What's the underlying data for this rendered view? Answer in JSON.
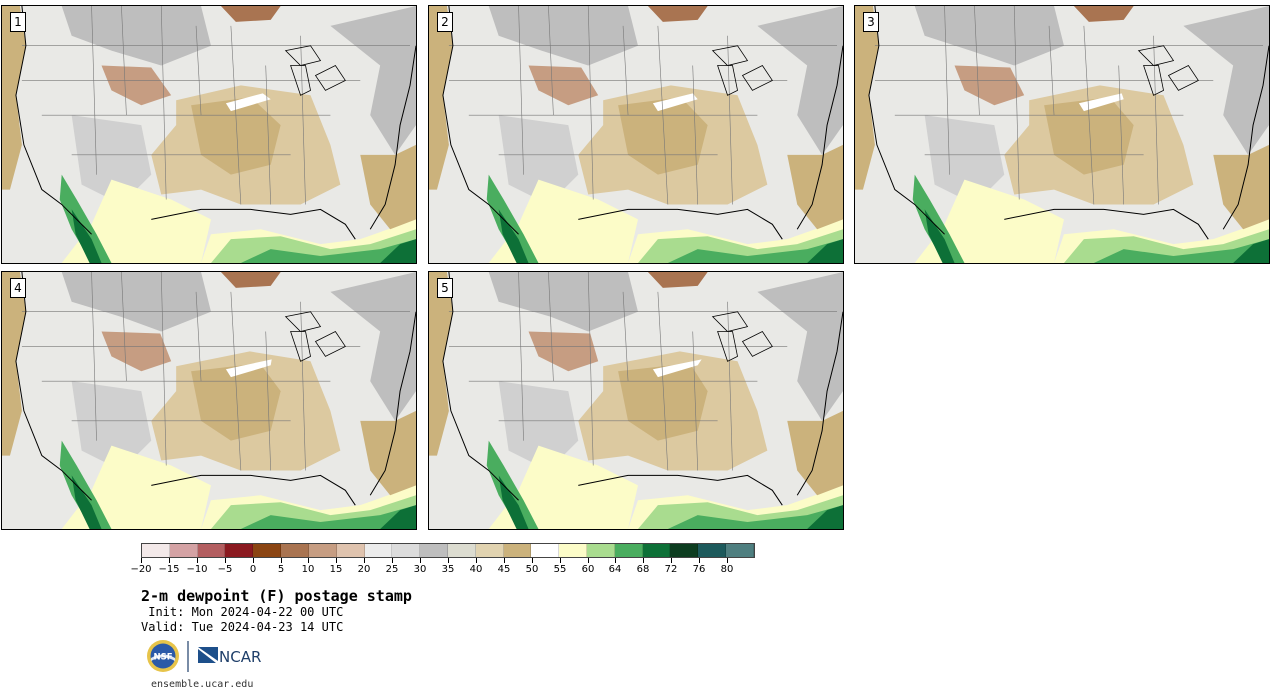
{
  "panels": [
    {
      "number": "1"
    },
    {
      "number": "2"
    },
    {
      "number": "3"
    },
    {
      "number": "4"
    },
    {
      "number": "5"
    }
  ],
  "colorbar": {
    "colors": [
      "#f3e9e9",
      "#d4a2a4",
      "#b35e60",
      "#8b1a20",
      "#8b4513",
      "#a97451",
      "#c69d82",
      "#dfc3ae",
      "#ececec",
      "#dcdcdc",
      "#bebebe",
      "#dcdcd0",
      "#e1d3b0",
      "#cbb27c",
      "#ffffff",
      "#fcfcc8",
      "#a9dc8f",
      "#4aad5f",
      "#0d7037",
      "#0d3d20",
      "#1d5a5c",
      "#4f7f80"
    ],
    "tick_labels": [
      "−20",
      "−15",
      "−10",
      "−5",
      "0",
      "5",
      "10",
      "15",
      "20",
      "25",
      "30",
      "35",
      "40",
      "45",
      "50",
      "55",
      "60",
      "64",
      "68",
      "72",
      "76",
      "80"
    ]
  },
  "title": "2-m dewpoint (F) postage stamp",
  "init": " Init: Mon 2024-04-22 00 UTC",
  "valid": "Valid: Tue 2024-04-23 14 UTC",
  "logos": {
    "nsf": "NSF",
    "ncar": "NCAR"
  },
  "site": "ensemble.ucar.edu"
}
